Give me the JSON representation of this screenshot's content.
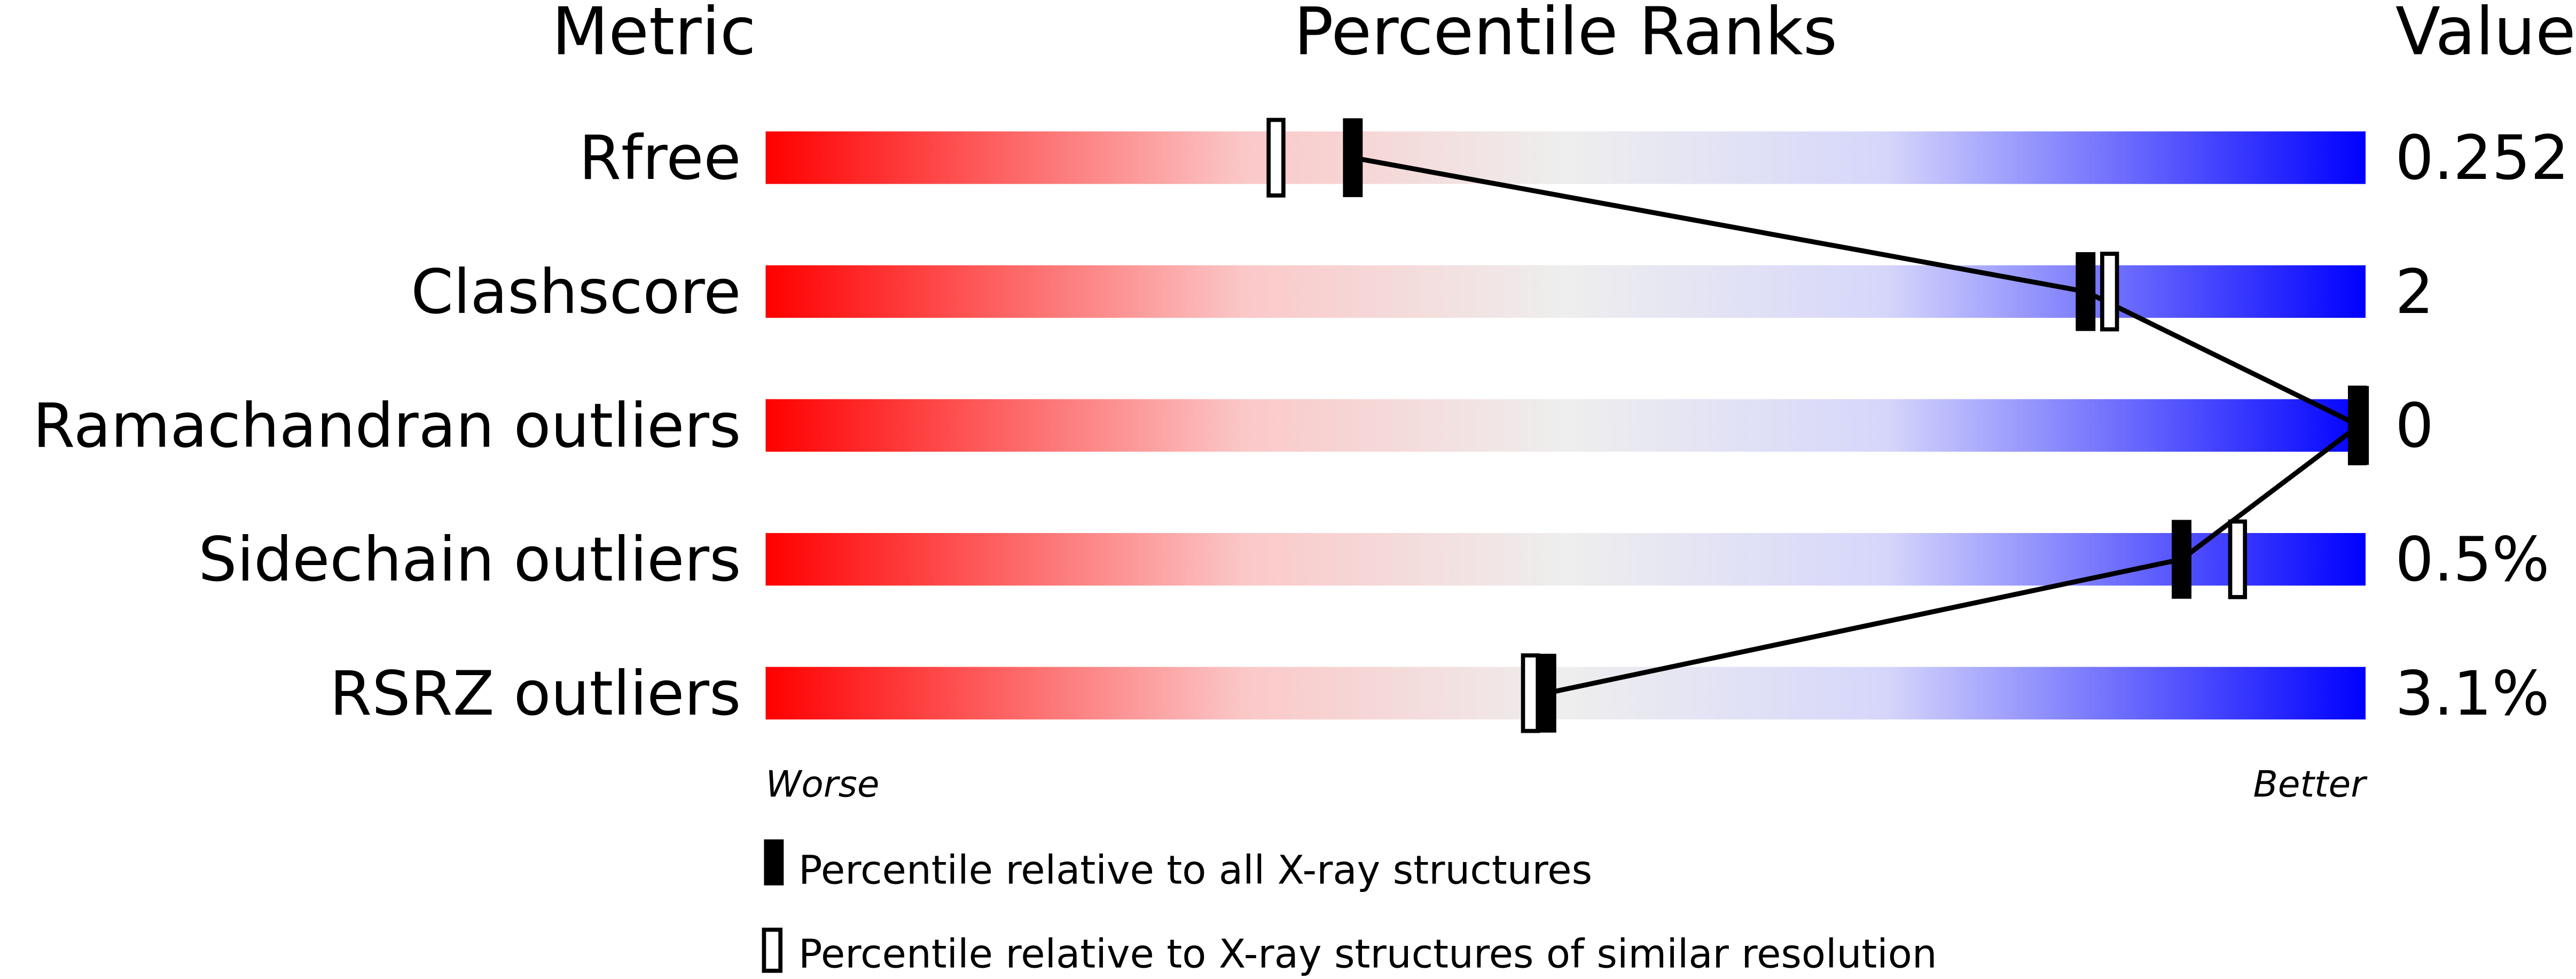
{
  "chart_data": {
    "type": "bar",
    "headers": {
      "metric": "Metric",
      "ranks": "Percentile Ranks",
      "value": "Value"
    },
    "xlim": [
      0,
      100
    ],
    "axis_labels": {
      "left": "Worse",
      "right": "Better"
    },
    "gradient_colors": [
      "#ff0000",
      "#f0f0f0",
      "#0000ff"
    ],
    "metrics": [
      {
        "name": "Rfree",
        "value": "0.252",
        "percentile_all": 36.7,
        "percentile_similar": 31.9
      },
      {
        "name": "Clashscore",
        "value": "2",
        "percentile_all": 82.5,
        "percentile_similar": 84.0
      },
      {
        "name": "Ramachandran outliers",
        "value": "0",
        "percentile_all": 100,
        "percentile_similar": 100
      },
      {
        "name": "Sidechain outliers",
        "value": "0.5%",
        "percentile_all": 88.5,
        "percentile_similar": 92.0
      },
      {
        "name": "RSRZ outliers",
        "value": "3.1%",
        "percentile_all": 48.8,
        "percentile_similar": 47.8
      }
    ],
    "legend": {
      "all": "Percentile relative to all X-ray structures",
      "similar": "Percentile relative to X-ray structures of similar resolution"
    }
  }
}
